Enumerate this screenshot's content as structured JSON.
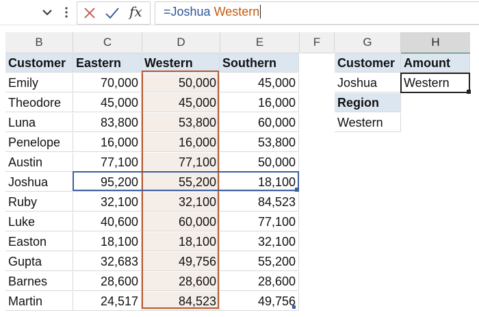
{
  "formula_bar": {
    "prefix": "=",
    "ref1": "Joshua",
    "space": " ",
    "ref2": "Western",
    "fx_label": "fx"
  },
  "columns": [
    "B",
    "C",
    "D",
    "E",
    "F",
    "G",
    "H"
  ],
  "table": {
    "headers": [
      "Customer",
      "Eastern",
      "Western",
      "Southern"
    ],
    "rows": [
      {
        "customer": "Emily",
        "eastern": "70,000",
        "western": "50,000",
        "southern": "45,000"
      },
      {
        "customer": "Theodore",
        "eastern": "45,000",
        "western": "45,000",
        "southern": "16,000"
      },
      {
        "customer": "Luna",
        "eastern": "83,800",
        "western": "53,800",
        "southern": "60,000"
      },
      {
        "customer": "Penelope",
        "eastern": "16,000",
        "western": "16,000",
        "southern": "53,800"
      },
      {
        "customer": "Austin",
        "eastern": "77,100",
        "western": "77,100",
        "southern": "50,000"
      },
      {
        "customer": "Joshua",
        "eastern": "95,200",
        "western": "55,200",
        "southern": "18,100"
      },
      {
        "customer": "Ruby",
        "eastern": "32,100",
        "western": "32,100",
        "southern": "84,523"
      },
      {
        "customer": "Luke",
        "eastern": "40,600",
        "western": "60,000",
        "southern": "77,100"
      },
      {
        "customer": "Easton",
        "eastern": "18,100",
        "western": "18,100",
        "southern": "32,100"
      },
      {
        "customer": "Gupta",
        "eastern": "32,683",
        "western": "49,756",
        "southern": "55,200"
      },
      {
        "customer": "Barnes",
        "eastern": "28,600",
        "western": "28,600",
        "southern": "28,600"
      },
      {
        "customer": "Martin",
        "eastern": "24,517",
        "western": "84,523",
        "southern": "49,756"
      }
    ]
  },
  "lookup": {
    "customer_label": "Customer",
    "amount_label": "Amount",
    "customer_value": "Joshua",
    "amount_value": "Western",
    "region_label": "Region",
    "region_value": "Western"
  },
  "colors": {
    "header_fill": "#dce6f1",
    "western_fill": "#f5ede8",
    "western_border": "#b65a36",
    "row_border": "#3a5f9e",
    "ref1_text": "#2f5597",
    "ref2_text": "#c55a11"
  }
}
